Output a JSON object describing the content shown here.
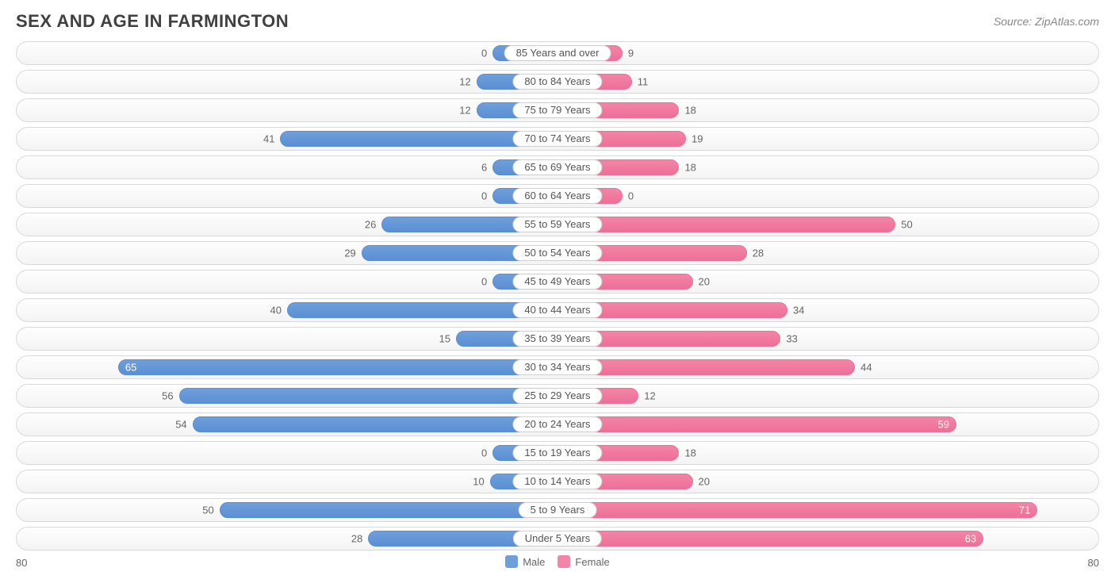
{
  "title": "SEX AND AGE IN FARMINGTON",
  "source": "Source: ZipAtlas.com",
  "chart": {
    "type": "population-pyramid",
    "axis_max": 80,
    "axis_label_left": "80",
    "axis_label_right": "80",
    "pill_min_half_width_pct": 9,
    "bar_min_pct": 12,
    "inside_label_threshold_pct": 70,
    "colors": {
      "male_fill": "#6f9fdb",
      "male_border": "#5b8fd3",
      "female_fill": "#f285a8",
      "female_border": "#ee6f98",
      "row_border": "#d9d9d9",
      "text": "#666666",
      "background": "#ffffff"
    },
    "legend": [
      {
        "label": "Male",
        "color": "#6f9fdb"
      },
      {
        "label": "Female",
        "color": "#f285a8"
      }
    ],
    "rows": [
      {
        "label": "85 Years and over",
        "male": 0,
        "female": 9
      },
      {
        "label": "80 to 84 Years",
        "male": 12,
        "female": 11
      },
      {
        "label": "75 to 79 Years",
        "male": 12,
        "female": 18
      },
      {
        "label": "70 to 74 Years",
        "male": 41,
        "female": 19
      },
      {
        "label": "65 to 69 Years",
        "male": 6,
        "female": 18
      },
      {
        "label": "60 to 64 Years",
        "male": 0,
        "female": 0
      },
      {
        "label": "55 to 59 Years",
        "male": 26,
        "female": 50
      },
      {
        "label": "50 to 54 Years",
        "male": 29,
        "female": 28
      },
      {
        "label": "45 to 49 Years",
        "male": 0,
        "female": 20
      },
      {
        "label": "40 to 44 Years",
        "male": 40,
        "female": 34
      },
      {
        "label": "35 to 39 Years",
        "male": 15,
        "female": 33
      },
      {
        "label": "30 to 34 Years",
        "male": 65,
        "female": 44
      },
      {
        "label": "25 to 29 Years",
        "male": 56,
        "female": 12
      },
      {
        "label": "20 to 24 Years",
        "male": 54,
        "female": 59
      },
      {
        "label": "15 to 19 Years",
        "male": 0,
        "female": 18
      },
      {
        "label": "10 to 14 Years",
        "male": 10,
        "female": 20
      },
      {
        "label": "5 to 9 Years",
        "male": 50,
        "female": 71
      },
      {
        "label": "Under 5 Years",
        "male": 28,
        "female": 63
      }
    ]
  }
}
